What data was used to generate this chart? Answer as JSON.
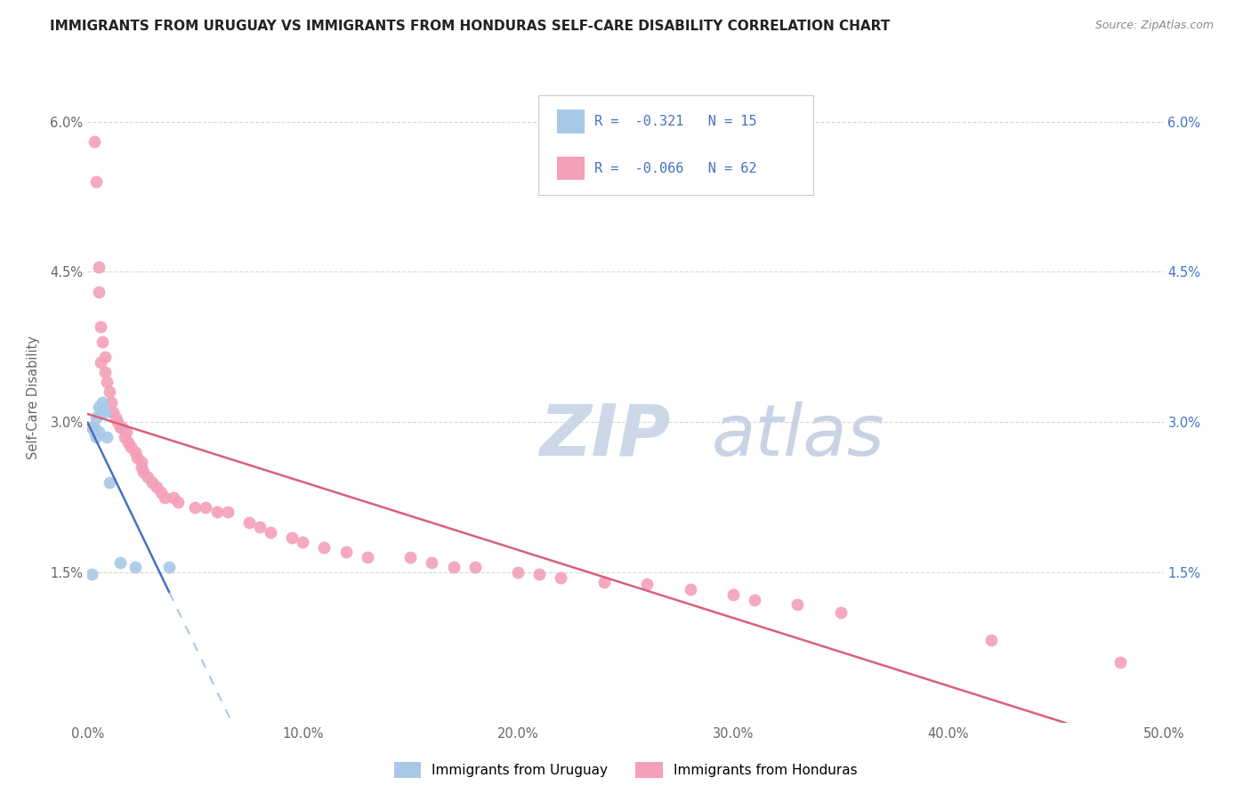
{
  "title": "IMMIGRANTS FROM URUGUAY VS IMMIGRANTS FROM HONDURAS SELF-CARE DISABILITY CORRELATION CHART",
  "source": "Source: ZipAtlas.com",
  "ylabel": "Self-Care Disability",
  "xlim": [
    0.0,
    0.5
  ],
  "ylim": [
    0.0,
    0.065
  ],
  "xticks": [
    0.0,
    0.1,
    0.2,
    0.3,
    0.4,
    0.5
  ],
  "yticks": [
    0.0,
    0.015,
    0.03,
    0.045,
    0.06
  ],
  "xticklabels": [
    "0.0%",
    "10.0%",
    "20.0%",
    "30.0%",
    "40.0%",
    "50.0%"
  ],
  "yticklabels_left": [
    "",
    "1.5%",
    "3.0%",
    "4.5%",
    "6.0%"
  ],
  "yticklabels_right": [
    "",
    "1.5%",
    "3.0%",
    "4.5%",
    "6.0%"
  ],
  "uruguay_R": -0.321,
  "uruguay_N": 15,
  "honduras_R": -0.066,
  "honduras_N": 62,
  "uruguay_color": "#a8c8e8",
  "honduras_color": "#f4a0b8",
  "uruguay_line_color": "#4472c4",
  "honduras_line_color": "#d9607a",
  "dashed_line_color": "#a8c8e8",
  "watermark_zip_color": "#ccd8e8",
  "watermark_atlas_color": "#c8d4e4",
  "background_color": "#ffffff",
  "grid_color": "#d8d8d8",
  "right_tick_color": "#4472c4",
  "title_color": "#222222",
  "source_color": "#888888",
  "tick_color": "#666666",
  "uruguay_x": [
    0.002,
    0.003,
    0.003,
    0.004,
    0.004,
    0.005,
    0.005,
    0.006,
    0.007,
    0.008,
    0.009,
    0.01,
    0.015,
    0.022,
    0.038
  ],
  "uruguay_y": [
    0.0148,
    0.029,
    0.0295,
    0.0285,
    0.0305,
    0.029,
    0.0315,
    0.031,
    0.032,
    0.031,
    0.0285,
    0.024,
    0.016,
    0.0155,
    0.0155
  ],
  "honduras_x": [
    0.002,
    0.003,
    0.004,
    0.005,
    0.005,
    0.006,
    0.006,
    0.007,
    0.008,
    0.008,
    0.009,
    0.01,
    0.011,
    0.012,
    0.013,
    0.014,
    0.015,
    0.016,
    0.017,
    0.018,
    0.019,
    0.02,
    0.022,
    0.023,
    0.025,
    0.025,
    0.026,
    0.028,
    0.03,
    0.032,
    0.034,
    0.036,
    0.04,
    0.042,
    0.05,
    0.055,
    0.06,
    0.065,
    0.075,
    0.08,
    0.085,
    0.095,
    0.1,
    0.11,
    0.12,
    0.13,
    0.15,
    0.16,
    0.17,
    0.18,
    0.2,
    0.21,
    0.22,
    0.24,
    0.26,
    0.28,
    0.3,
    0.31,
    0.33,
    0.35,
    0.42,
    0.48
  ],
  "honduras_y": [
    0.0295,
    0.058,
    0.054,
    0.043,
    0.0455,
    0.0395,
    0.036,
    0.038,
    0.035,
    0.0365,
    0.034,
    0.033,
    0.032,
    0.031,
    0.0305,
    0.03,
    0.0295,
    0.0295,
    0.0285,
    0.029,
    0.028,
    0.0275,
    0.027,
    0.0265,
    0.026,
    0.0255,
    0.025,
    0.0245,
    0.024,
    0.0235,
    0.023,
    0.0225,
    0.0225,
    0.022,
    0.0215,
    0.0215,
    0.021,
    0.021,
    0.02,
    0.0195,
    0.019,
    0.0185,
    0.018,
    0.0175,
    0.017,
    0.0165,
    0.0165,
    0.016,
    0.0155,
    0.0155,
    0.015,
    0.0148,
    0.0145,
    0.014,
    0.0138,
    0.0133,
    0.0128,
    0.0122,
    0.0118,
    0.011,
    0.0082,
    0.006
  ]
}
